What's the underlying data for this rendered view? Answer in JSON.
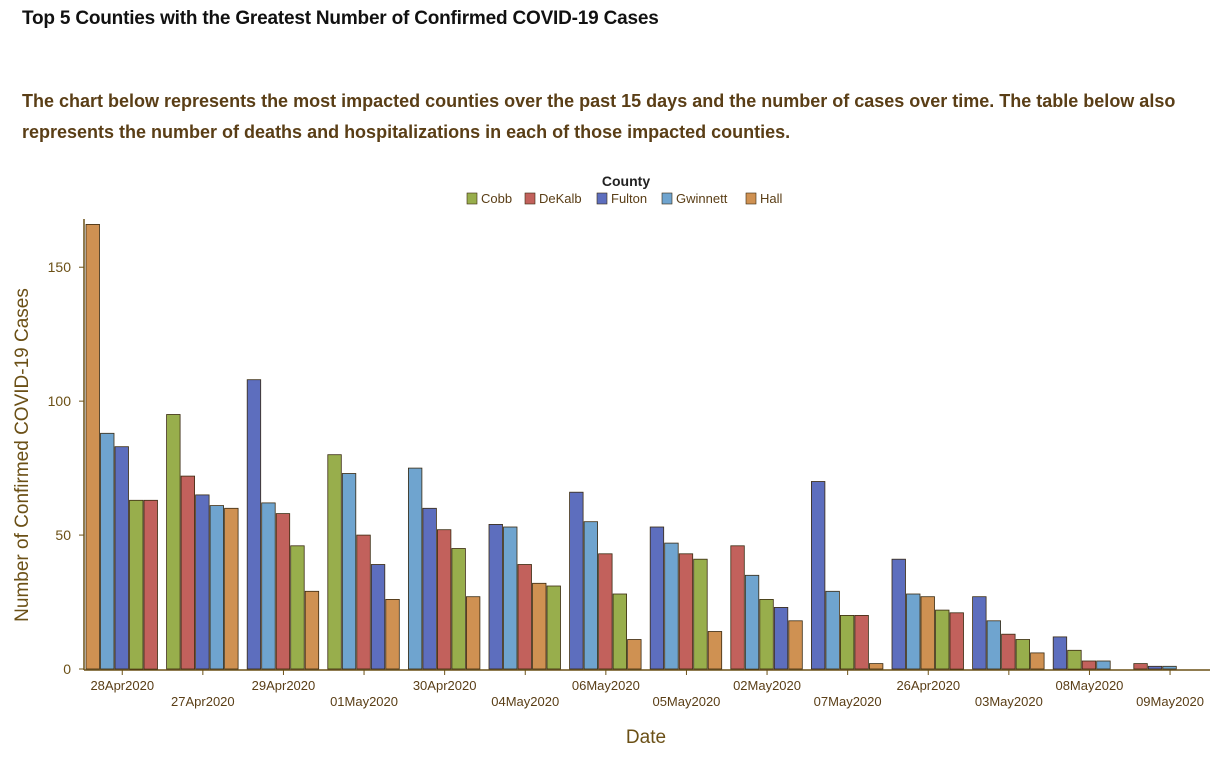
{
  "page": {
    "title": "Top 5 Counties with the Greatest Number of Confirmed COVID-19 Cases",
    "description": "The chart below represents the most impacted counties over the past 15 days and the number of cases over time. The table below also represents the number of deaths and hospitalizations in each of those impacted counties."
  },
  "chart_data": {
    "type": "bar",
    "xlabel": "Date",
    "ylabel": "Number of Confirmed COVID-19 Cases",
    "ylim": [
      0,
      168
    ],
    "yticks": [
      0,
      50,
      100,
      150
    ],
    "legend": {
      "title": "County",
      "placement": "top-center"
    },
    "colors": {
      "Cobb": "#98ae4c",
      "DeKalb": "#c2615c",
      "Fulton": "#5d6ebe",
      "Gwinnett": "#6fa4cf",
      "Hall": "#cf9152"
    },
    "series_names": [
      "Cobb",
      "DeKalb",
      "Fulton",
      "Gwinnett",
      "Hall"
    ],
    "categories": [
      {
        "label": "28Apr2020",
        "bars": [
          [
            "Hall",
            166
          ],
          [
            "Gwinnett",
            88
          ],
          [
            "Fulton",
            83
          ],
          [
            "Cobb",
            63
          ],
          [
            "DeKalb",
            63
          ]
        ]
      },
      {
        "label": "27Apr2020",
        "bars": [
          [
            "Cobb",
            95
          ],
          [
            "DeKalb",
            72
          ],
          [
            "Fulton",
            65
          ],
          [
            "Gwinnett",
            61
          ],
          [
            "Hall",
            60
          ]
        ]
      },
      {
        "label": "29Apr2020",
        "bars": [
          [
            "Fulton",
            108
          ],
          [
            "Gwinnett",
            62
          ],
          [
            "DeKalb",
            58
          ],
          [
            "Cobb",
            46
          ],
          [
            "Hall",
            29
          ]
        ]
      },
      {
        "label": "01May2020",
        "bars": [
          [
            "Cobb",
            80
          ],
          [
            "Gwinnett",
            73
          ],
          [
            "DeKalb",
            50
          ],
          [
            "Fulton",
            39
          ],
          [
            "Hall",
            26
          ]
        ]
      },
      {
        "label": "30Apr2020",
        "bars": [
          [
            "Gwinnett",
            75
          ],
          [
            "Fulton",
            60
          ],
          [
            "DeKalb",
            52
          ],
          [
            "Cobb",
            45
          ],
          [
            "Hall",
            27
          ]
        ]
      },
      {
        "label": "04May2020",
        "bars": [
          [
            "Fulton",
            54
          ],
          [
            "Gwinnett",
            53
          ],
          [
            "DeKalb",
            39
          ],
          [
            "Hall",
            32
          ],
          [
            "Cobb",
            31
          ]
        ]
      },
      {
        "label": "06May2020",
        "bars": [
          [
            "Fulton",
            66
          ],
          [
            "Gwinnett",
            55
          ],
          [
            "DeKalb",
            43
          ],
          [
            "Cobb",
            28
          ],
          [
            "Hall",
            11
          ]
        ]
      },
      {
        "label": "05May2020",
        "bars": [
          [
            "Fulton",
            53
          ],
          [
            "Gwinnett",
            47
          ],
          [
            "DeKalb",
            43
          ],
          [
            "Cobb",
            41
          ],
          [
            "Hall",
            14
          ]
        ]
      },
      {
        "label": "02May2020",
        "bars": [
          [
            "DeKalb",
            46
          ],
          [
            "Gwinnett",
            35
          ],
          [
            "Cobb",
            26
          ],
          [
            "Fulton",
            23
          ],
          [
            "Hall",
            18
          ]
        ]
      },
      {
        "label": "07May2020",
        "bars": [
          [
            "Fulton",
            70
          ],
          [
            "Gwinnett",
            29
          ],
          [
            "Cobb",
            20
          ],
          [
            "DeKalb",
            20
          ],
          [
            "Hall",
            2
          ]
        ]
      },
      {
        "label": "26Apr2020",
        "bars": [
          [
            "Fulton",
            41
          ],
          [
            "Gwinnett",
            28
          ],
          [
            "Hall",
            27
          ],
          [
            "Cobb",
            22
          ],
          [
            "DeKalb",
            21
          ]
        ]
      },
      {
        "label": "03May2020",
        "bars": [
          [
            "Fulton",
            27
          ],
          [
            "Gwinnett",
            18
          ],
          [
            "DeKalb",
            13
          ],
          [
            "Cobb",
            11
          ],
          [
            "Hall",
            6
          ]
        ]
      },
      {
        "label": "08May2020",
        "bars": [
          [
            "Fulton",
            12
          ],
          [
            "Cobb",
            7
          ],
          [
            "DeKalb",
            3
          ],
          [
            "Gwinnett",
            3
          ],
          [
            "Hall",
            0
          ]
        ]
      },
      {
        "label": "09May2020",
        "bars": [
          [
            "DeKalb",
            2
          ],
          [
            "Fulton",
            1
          ],
          [
            "Gwinnett",
            1
          ],
          [
            "Cobb",
            0
          ],
          [
            "Hall",
            0
          ]
        ]
      }
    ]
  }
}
